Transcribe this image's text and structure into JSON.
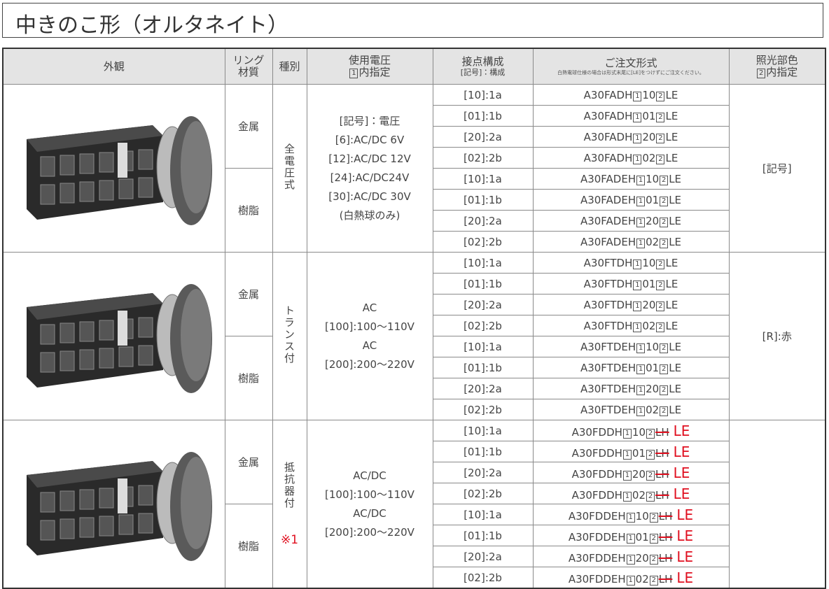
{
  "title": "中きのこ形（オルタネイト）",
  "table": {
    "headers": [
      {
        "lines": [
          "外観"
        ]
      },
      {
        "lines": [
          "リング",
          "材質"
        ]
      },
      {
        "lines": [
          "種別"
        ]
      },
      {
        "lines": [
          "使用電圧"
        ],
        "box": "1",
        "box_text": "内指定"
      },
      {
        "lines": [
          "接点構成"
        ],
        "sub": "[記号]：構成"
      },
      {
        "lines": [
          "ご注文形式"
        ],
        "note": "白熱電球仕様の場合は形式末尾に[LE]をつけずにご注文ください。"
      },
      {
        "lines": [
          "照光部色"
        ],
        "box": "2",
        "box_text": "内指定"
      }
    ],
    "groups": [
      {
        "type": "全電圧式",
        "voltage": [
          "[記号]：電圧",
          "[6]:AC/DC 6V",
          "[12]:AC/DC 12V",
          "[24]:AC/DC24V",
          "[30]:AC/DC 30V",
          "(白熱球のみ)"
        ],
        "color": "[記号]",
        "materials": [
          {
            "material": "金属",
            "rows": [
              {
                "contact": "[10]:1a",
                "code": {
                  "prefix": "A30FADH",
                  "box1": "1",
                  "digits": "10",
                  "box2": "2",
                  "suffix": "LE"
                }
              },
              {
                "contact": "[01]:1b",
                "code": {
                  "prefix": "A30FADH",
                  "box1": "1",
                  "digits": "01",
                  "box2": "2",
                  "suffix": "LE"
                }
              },
              {
                "contact": "[20]:2a",
                "code": {
                  "prefix": "A30FADH",
                  "box1": "1",
                  "digits": "20",
                  "box2": "2",
                  "suffix": "LE"
                }
              },
              {
                "contact": "[02]:2b",
                "code": {
                  "prefix": "A30FADH",
                  "box1": "1",
                  "digits": "02",
                  "box2": "2",
                  "suffix": "LE"
                }
              }
            ]
          },
          {
            "material": "樹脂",
            "rows": [
              {
                "contact": "[10]:1a",
                "code": {
                  "prefix": "A30FADEH",
                  "box1": "1",
                  "digits": "10",
                  "box2": "2",
                  "suffix": "LE"
                }
              },
              {
                "contact": "[01]:1b",
                "code": {
                  "prefix": "A30FADEH",
                  "box1": "1",
                  "digits": "01",
                  "box2": "2",
                  "suffix": "LE"
                }
              },
              {
                "contact": "[20]:2a",
                "code": {
                  "prefix": "A30FADEH",
                  "box1": "1",
                  "digits": "20",
                  "box2": "2",
                  "suffix": "LE"
                }
              },
              {
                "contact": "[02]:2b",
                "code": {
                  "prefix": "A30FADEH",
                  "box1": "1",
                  "digits": "02",
                  "box2": "2",
                  "suffix": "LE"
                }
              }
            ]
          }
        ]
      },
      {
        "type": "トランス付",
        "voltage": [
          "AC",
          "[100]:100～110V",
          "AC",
          "[200]:200～220V"
        ],
        "color": "[R]:赤",
        "materials": [
          {
            "material": "金属",
            "rows": [
              {
                "contact": "[10]:1a",
                "code": {
                  "prefix": "A30FTDH",
                  "box1": "1",
                  "digits": "10",
                  "box2": "2",
                  "suffix": "LE"
                }
              },
              {
                "contact": "[01]:1b",
                "code": {
                  "prefix": "A30FTDH",
                  "box1": "1",
                  "digits": "01",
                  "box2": "2",
                  "suffix": "LE"
                }
              },
              {
                "contact": "[20]:2a",
                "code": {
                  "prefix": "A30FTDH",
                  "box1": "1",
                  "digits": "20",
                  "box2": "2",
                  "suffix": "LE"
                }
              },
              {
                "contact": "[02]:2b",
                "code": {
                  "prefix": "A30FTDH",
                  "box1": "1",
                  "digits": "02",
                  "box2": "2",
                  "suffix": "LE"
                }
              }
            ]
          },
          {
            "material": "樹脂",
            "rows": [
              {
                "contact": "[10]:1a",
                "code": {
                  "prefix": "A30FTDEH",
                  "box1": "1",
                  "digits": "10",
                  "box2": "2",
                  "suffix": "LE"
                }
              },
              {
                "contact": "[01]:1b",
                "code": {
                  "prefix": "A30FTDEH",
                  "box1": "1",
                  "digits": "01",
                  "box2": "2",
                  "suffix": "LE"
                }
              },
              {
                "contact": "[20]:2a",
                "code": {
                  "prefix": "A30FTDEH",
                  "box1": "1",
                  "digits": "20",
                  "box2": "2",
                  "suffix": "LE"
                }
              },
              {
                "contact": "[02]:2b",
                "code": {
                  "prefix": "A30FTDEH",
                  "box1": "1",
                  "digits": "02",
                  "box2": "2",
                  "suffix": "LE"
                }
              }
            ]
          }
        ]
      },
      {
        "type": "抵抗器付",
        "type_note": "※1",
        "voltage": [
          "AC/DC",
          "[100]:100～110V",
          "AC/DC",
          "[200]:200～220V"
        ],
        "materials": [
          {
            "material": "金属",
            "rows": [
              {
                "contact": "[10]:1a",
                "code": {
                  "prefix": "A30FDDH",
                  "box1": "1",
                  "digits": "10",
                  "box2": "2",
                  "suffix": "LH",
                  "correction": "LE"
                }
              },
              {
                "contact": "[01]:1b",
                "code": {
                  "prefix": "A30FDDH",
                  "box1": "1",
                  "digits": "01",
                  "box2": "2",
                  "suffix": "LH",
                  "correction": "LE"
                }
              },
              {
                "contact": "[20]:2a",
                "code": {
                  "prefix": "A30FDDH",
                  "box1": "1",
                  "digits": "20",
                  "box2": "2",
                  "suffix": "LH",
                  "correction": "LE"
                }
              },
              {
                "contact": "[02]:2b",
                "code": {
                  "prefix": "A30FDDH",
                  "box1": "1",
                  "digits": "02",
                  "box2": "2",
                  "suffix": "LH",
                  "correction": "LE"
                }
              }
            ]
          },
          {
            "material": "樹脂",
            "rows": [
              {
                "contact": "[10]:1a",
                "code": {
                  "prefix": "A30FDDEH",
                  "box1": "1",
                  "digits": "10",
                  "box2": "2",
                  "suffix": "LH",
                  "correction": "LE"
                }
              },
              {
                "contact": "[01]:1b",
                "code": {
                  "prefix": "A30FDDEH",
                  "box1": "1",
                  "digits": "01",
                  "box2": "2",
                  "suffix": "LH",
                  "correction": "LE"
                }
              },
              {
                "contact": "[20]:2a",
                "code": {
                  "prefix": "A30FDDEH",
                  "box1": "1",
                  "digits": "20",
                  "box2": "2",
                  "suffix": "LH",
                  "correction": "LE"
                }
              },
              {
                "contact": "[02]:2b",
                "code": {
                  "prefix": "A30FDDEH",
                  "box1": "1",
                  "digits": "02",
                  "box2": "2",
                  "suffix": "LH",
                  "correction": "LE"
                }
              }
            ]
          }
        ]
      }
    ]
  }
}
